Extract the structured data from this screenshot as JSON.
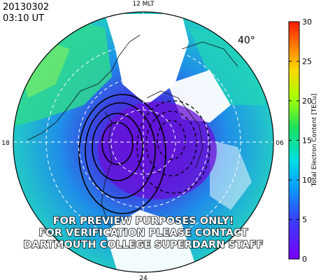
{
  "header": {
    "date": "20130302",
    "time": "03:10 UT"
  },
  "map": {
    "latitude_label": "40°",
    "mlt_labels": {
      "top": "12 MLT",
      "left": "18",
      "right": "06",
      "bottom": "24"
    }
  },
  "colorbar": {
    "label": "Total Electron Content [TECu]",
    "min": 0,
    "max": 30,
    "ticks": [
      "0",
      "5",
      "10",
      "15",
      "20",
      "25",
      "30"
    ]
  },
  "watermark": {
    "line1": "FOR PREVIEW PURPOSES ONLY!",
    "line2": "FOR VERIFICATION PLEASE CONTACT",
    "line3": "DARTMOUTH COLLEGE SUPERDARN STAFF"
  }
}
